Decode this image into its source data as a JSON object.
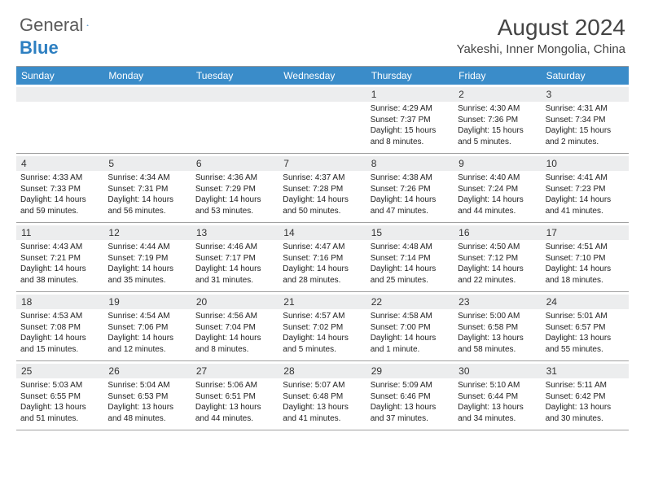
{
  "logo": {
    "general": "General",
    "blue": "Blue"
  },
  "header": {
    "month": "August 2024",
    "location": "Yakeshi, Inner Mongolia, China"
  },
  "colors": {
    "header_bg": "#3a8cc9",
    "strip_bg": "#ecedee",
    "border": "#a0a0a0"
  },
  "weekdays": [
    "Sunday",
    "Monday",
    "Tuesday",
    "Wednesday",
    "Thursday",
    "Friday",
    "Saturday"
  ],
  "weeks": [
    [
      {
        "empty": true
      },
      {
        "empty": true
      },
      {
        "empty": true
      },
      {
        "empty": true
      },
      {
        "day": "1",
        "sunrise": "Sunrise: 4:29 AM",
        "sunset": "Sunset: 7:37 PM",
        "daylight1": "Daylight: 15 hours",
        "daylight2": "and 8 minutes."
      },
      {
        "day": "2",
        "sunrise": "Sunrise: 4:30 AM",
        "sunset": "Sunset: 7:36 PM",
        "daylight1": "Daylight: 15 hours",
        "daylight2": "and 5 minutes."
      },
      {
        "day": "3",
        "sunrise": "Sunrise: 4:31 AM",
        "sunset": "Sunset: 7:34 PM",
        "daylight1": "Daylight: 15 hours",
        "daylight2": "and 2 minutes."
      }
    ],
    [
      {
        "day": "4",
        "sunrise": "Sunrise: 4:33 AM",
        "sunset": "Sunset: 7:33 PM",
        "daylight1": "Daylight: 14 hours",
        "daylight2": "and 59 minutes."
      },
      {
        "day": "5",
        "sunrise": "Sunrise: 4:34 AM",
        "sunset": "Sunset: 7:31 PM",
        "daylight1": "Daylight: 14 hours",
        "daylight2": "and 56 minutes."
      },
      {
        "day": "6",
        "sunrise": "Sunrise: 4:36 AM",
        "sunset": "Sunset: 7:29 PM",
        "daylight1": "Daylight: 14 hours",
        "daylight2": "and 53 minutes."
      },
      {
        "day": "7",
        "sunrise": "Sunrise: 4:37 AM",
        "sunset": "Sunset: 7:28 PM",
        "daylight1": "Daylight: 14 hours",
        "daylight2": "and 50 minutes."
      },
      {
        "day": "8",
        "sunrise": "Sunrise: 4:38 AM",
        "sunset": "Sunset: 7:26 PM",
        "daylight1": "Daylight: 14 hours",
        "daylight2": "and 47 minutes."
      },
      {
        "day": "9",
        "sunrise": "Sunrise: 4:40 AM",
        "sunset": "Sunset: 7:24 PM",
        "daylight1": "Daylight: 14 hours",
        "daylight2": "and 44 minutes."
      },
      {
        "day": "10",
        "sunrise": "Sunrise: 4:41 AM",
        "sunset": "Sunset: 7:23 PM",
        "daylight1": "Daylight: 14 hours",
        "daylight2": "and 41 minutes."
      }
    ],
    [
      {
        "day": "11",
        "sunrise": "Sunrise: 4:43 AM",
        "sunset": "Sunset: 7:21 PM",
        "daylight1": "Daylight: 14 hours",
        "daylight2": "and 38 minutes."
      },
      {
        "day": "12",
        "sunrise": "Sunrise: 4:44 AM",
        "sunset": "Sunset: 7:19 PM",
        "daylight1": "Daylight: 14 hours",
        "daylight2": "and 35 minutes."
      },
      {
        "day": "13",
        "sunrise": "Sunrise: 4:46 AM",
        "sunset": "Sunset: 7:17 PM",
        "daylight1": "Daylight: 14 hours",
        "daylight2": "and 31 minutes."
      },
      {
        "day": "14",
        "sunrise": "Sunrise: 4:47 AM",
        "sunset": "Sunset: 7:16 PM",
        "daylight1": "Daylight: 14 hours",
        "daylight2": "and 28 minutes."
      },
      {
        "day": "15",
        "sunrise": "Sunrise: 4:48 AM",
        "sunset": "Sunset: 7:14 PM",
        "daylight1": "Daylight: 14 hours",
        "daylight2": "and 25 minutes."
      },
      {
        "day": "16",
        "sunrise": "Sunrise: 4:50 AM",
        "sunset": "Sunset: 7:12 PM",
        "daylight1": "Daylight: 14 hours",
        "daylight2": "and 22 minutes."
      },
      {
        "day": "17",
        "sunrise": "Sunrise: 4:51 AM",
        "sunset": "Sunset: 7:10 PM",
        "daylight1": "Daylight: 14 hours",
        "daylight2": "and 18 minutes."
      }
    ],
    [
      {
        "day": "18",
        "sunrise": "Sunrise: 4:53 AM",
        "sunset": "Sunset: 7:08 PM",
        "daylight1": "Daylight: 14 hours",
        "daylight2": "and 15 minutes."
      },
      {
        "day": "19",
        "sunrise": "Sunrise: 4:54 AM",
        "sunset": "Sunset: 7:06 PM",
        "daylight1": "Daylight: 14 hours",
        "daylight2": "and 12 minutes."
      },
      {
        "day": "20",
        "sunrise": "Sunrise: 4:56 AM",
        "sunset": "Sunset: 7:04 PM",
        "daylight1": "Daylight: 14 hours",
        "daylight2": "and 8 minutes."
      },
      {
        "day": "21",
        "sunrise": "Sunrise: 4:57 AM",
        "sunset": "Sunset: 7:02 PM",
        "daylight1": "Daylight: 14 hours",
        "daylight2": "and 5 minutes."
      },
      {
        "day": "22",
        "sunrise": "Sunrise: 4:58 AM",
        "sunset": "Sunset: 7:00 PM",
        "daylight1": "Daylight: 14 hours",
        "daylight2": "and 1 minute."
      },
      {
        "day": "23",
        "sunrise": "Sunrise: 5:00 AM",
        "sunset": "Sunset: 6:58 PM",
        "daylight1": "Daylight: 13 hours",
        "daylight2": "and 58 minutes."
      },
      {
        "day": "24",
        "sunrise": "Sunrise: 5:01 AM",
        "sunset": "Sunset: 6:57 PM",
        "daylight1": "Daylight: 13 hours",
        "daylight2": "and 55 minutes."
      }
    ],
    [
      {
        "day": "25",
        "sunrise": "Sunrise: 5:03 AM",
        "sunset": "Sunset: 6:55 PM",
        "daylight1": "Daylight: 13 hours",
        "daylight2": "and 51 minutes."
      },
      {
        "day": "26",
        "sunrise": "Sunrise: 5:04 AM",
        "sunset": "Sunset: 6:53 PM",
        "daylight1": "Daylight: 13 hours",
        "daylight2": "and 48 minutes."
      },
      {
        "day": "27",
        "sunrise": "Sunrise: 5:06 AM",
        "sunset": "Sunset: 6:51 PM",
        "daylight1": "Daylight: 13 hours",
        "daylight2": "and 44 minutes."
      },
      {
        "day": "28",
        "sunrise": "Sunrise: 5:07 AM",
        "sunset": "Sunset: 6:48 PM",
        "daylight1": "Daylight: 13 hours",
        "daylight2": "and 41 minutes."
      },
      {
        "day": "29",
        "sunrise": "Sunrise: 5:09 AM",
        "sunset": "Sunset: 6:46 PM",
        "daylight1": "Daylight: 13 hours",
        "daylight2": "and 37 minutes."
      },
      {
        "day": "30",
        "sunrise": "Sunrise: 5:10 AM",
        "sunset": "Sunset: 6:44 PM",
        "daylight1": "Daylight: 13 hours",
        "daylight2": "and 34 minutes."
      },
      {
        "day": "31",
        "sunrise": "Sunrise: 5:11 AM",
        "sunset": "Sunset: 6:42 PM",
        "daylight1": "Daylight: 13 hours",
        "daylight2": "and 30 minutes."
      }
    ]
  ]
}
